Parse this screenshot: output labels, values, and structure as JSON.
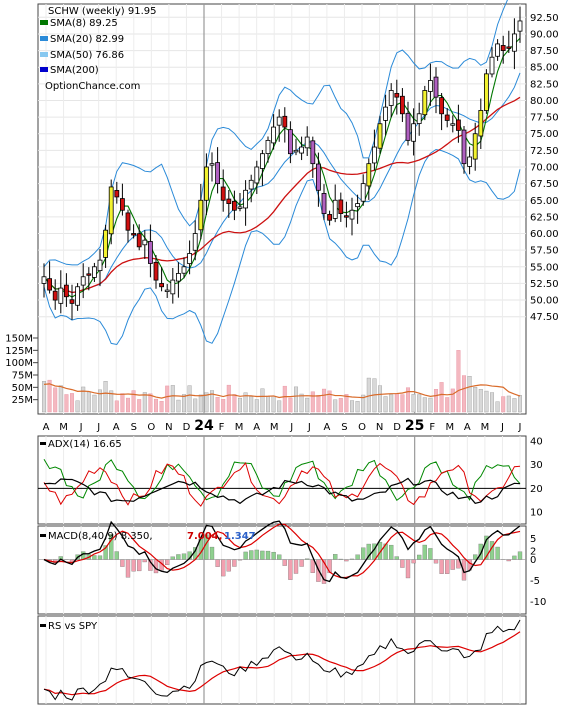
{
  "chart_data": [
    {
      "type": "candlestick",
      "title": "SCHW (weekly) 91.95",
      "watermark": "OptionChance.com",
      "legend": [
        {
          "label": "SMA(8) 89.25",
          "color": "#007700"
        },
        {
          "label": "SMA(20) 82.99",
          "color": "#2a8ad8"
        },
        {
          "label": "SMA(50) 76.86",
          "color": "#87c8f0"
        },
        {
          "label": "SMA(200)",
          "color": "#0000cc"
        }
      ],
      "ylim": [
        45.5,
        94.5
      ],
      "price_ticks": [
        "92.50",
        "90.00",
        "87.50",
        "85.00",
        "82.50",
        "80.00",
        "77.50",
        "75.00",
        "72.50",
        "70.00",
        "67.50",
        "65.00",
        "62.50",
        "60.00",
        "57.50",
        "55.00",
        "52.50",
        "50.00",
        "47.50"
      ],
      "closes": [
        53.5,
        51.5,
        50.0,
        51.8,
        50.5,
        49.5,
        52.0,
        53.5,
        53.8,
        55.0,
        56.0,
        60.5,
        67.0,
        65.5,
        63.5,
        60.5,
        60.0,
        58.0,
        59.0,
        55.5,
        53.0,
        52.0,
        51.5,
        53.0,
        54.0,
        55.0,
        57.0,
        60.0,
        65.0,
        70.0,
        70.5,
        67.5,
        65.0,
        64.5,
        63.5,
        64.0,
        66.5,
        68.0,
        70.0,
        72.0,
        74.0,
        76.0,
        77.5,
        76.0,
        72.0,
        72.5,
        73.0,
        74.5,
        70.5,
        66.5,
        63.0,
        62.0,
        65.0,
        63.0,
        62.5,
        63.5,
        64.5,
        67.5,
        70.5,
        73.0,
        76.5,
        79.0,
        81.5,
        80.5,
        78.0,
        74.0,
        76.5,
        78.0,
        81.5,
        83.0,
        80.5,
        78.0,
        77.0,
        76.5,
        75.5,
        70.5,
        71.5,
        75.0,
        78.5,
        84.0,
        86.5,
        88.5,
        87.5,
        88.0,
        90.0,
        91.95
      ],
      "volume_ticks": [
        "150M",
        "125M",
        "100M",
        "75M",
        "50M",
        "25M"
      ],
      "x_labels": [
        "A",
        "M",
        "J",
        "J",
        "A",
        "S",
        "O",
        "N",
        "D",
        "24",
        "F",
        "M",
        "A",
        "M",
        "J",
        "J",
        "A",
        "S",
        "O",
        "N",
        "D",
        "25",
        "F",
        "M",
        "A",
        "M",
        "J",
        "J"
      ]
    },
    {
      "type": "line",
      "title": "ADX(14) 16.65",
      "y_ticks": [
        "40",
        "30",
        "20",
        "10"
      ]
    },
    {
      "type": "line",
      "title": "MACD(8,40,9) 8.350,",
      "signal": "7.004,",
      "histogram": "1.347",
      "y_ticks": [
        "5",
        "2",
        "0",
        "-5",
        "-10"
      ]
    },
    {
      "type": "line",
      "title": "RS vs SPY"
    }
  ]
}
